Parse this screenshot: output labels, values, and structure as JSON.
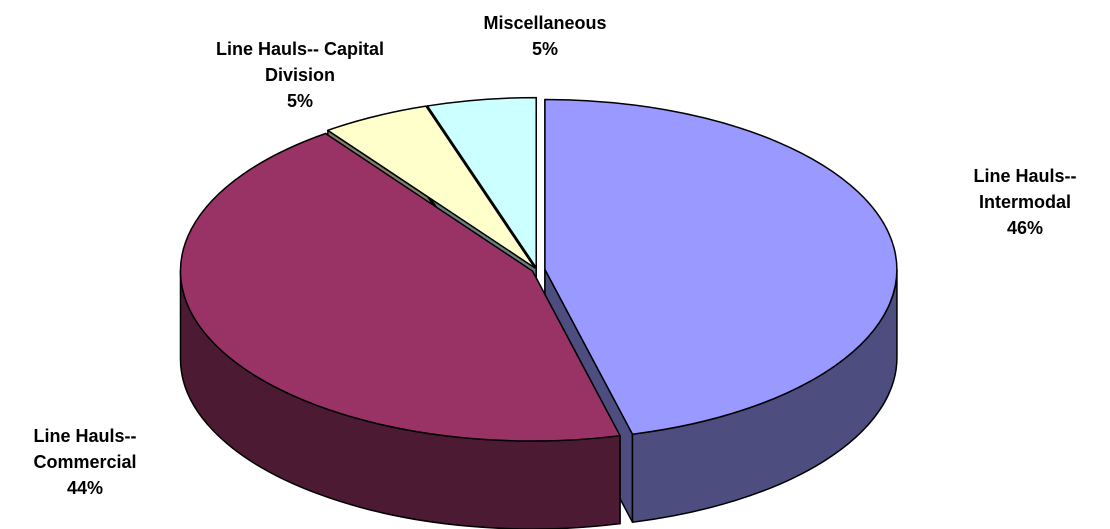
{
  "chart_data": {
    "type": "pie",
    "categories": [
      "Line Hauls-- Intermodal",
      "Line Hauls-- Commercial",
      "Line Hauls-- Capital Division",
      "Miscellaneous"
    ],
    "values": [
      46,
      44,
      5,
      5
    ],
    "value_labels": [
      "46%",
      "44%",
      "5%",
      "5%"
    ],
    "colors": [
      "#9999ff",
      "#993366",
      "#ffffcc",
      "#ccffff"
    ],
    "side_colors": [
      "#4d4d80",
      "#4d1a33",
      "#80806a",
      "#6a8080"
    ]
  }
}
